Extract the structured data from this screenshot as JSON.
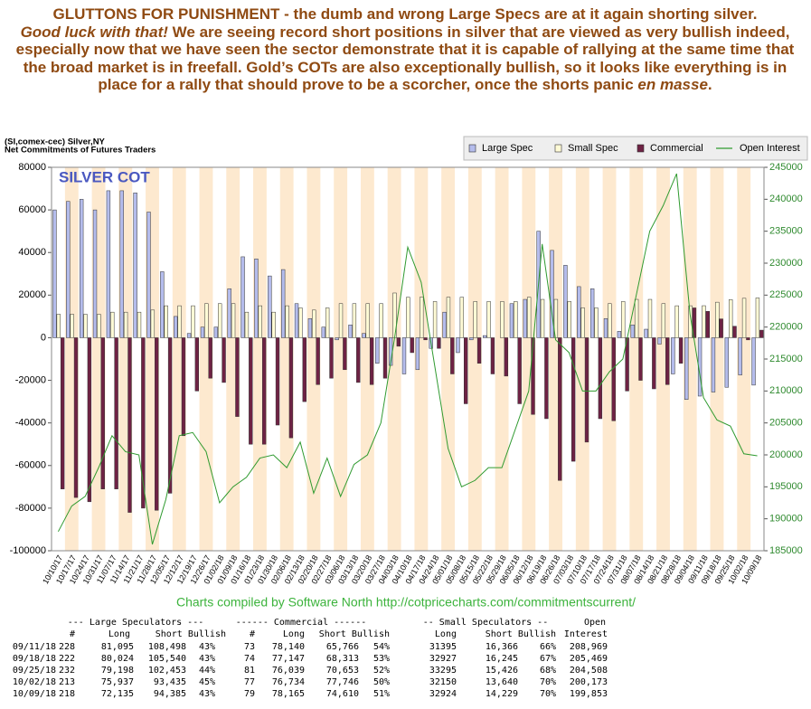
{
  "headline": {
    "parts": [
      "GLUTTONS FOR PUNISHMENT - the dumb and wrong Large Specs are at it again shorting silver.",
      "Good luck with that!",
      " We are seeing record short positions in silver that are viewed as very bullish indeed, especially now that we have seen the sector demonstrate that it is capable of rallying at the same time that the broad market is in freefall. Gold’s COTs are also exceptionally bullish, so it looks like everything is in place for a rally that should prove to be a scorcher, once the shorts panic ",
      "en masse",
      "."
    ]
  },
  "chart_data": {
    "type": "bar",
    "title": "SILVER COT",
    "subtitle": [
      "(SI,comex-cec) Silver,NY",
      "Net Commitments of Futures Traders"
    ],
    "categories": [
      "10/10/17",
      "10/17/17",
      "10/24/17",
      "10/31/17",
      "11/07/17",
      "11/14/17",
      "11/21/17",
      "11/28/17",
      "12/05/17",
      "12/12/17",
      "12/19/17",
      "12/26/17",
      "01/02/18",
      "01/09/18",
      "01/16/18",
      "01/23/18",
      "01/30/18",
      "02/06/18",
      "02/13/18",
      "02/20/18",
      "02/27/18",
      "03/06/18",
      "03/13/18",
      "03/20/18",
      "03/27/18",
      "04/03/18",
      "04/10/18",
      "04/17/18",
      "04/24/18",
      "05/01/18",
      "05/08/18",
      "05/15/18",
      "05/22/18",
      "05/29/18",
      "06/05/18",
      "06/12/18",
      "06/19/18",
      "06/26/18",
      "07/03/18",
      "07/10/18",
      "07/17/18",
      "07/24/18",
      "07/31/18",
      "08/07/18",
      "08/14/18",
      "08/21/18",
      "08/28/18",
      "09/04/18",
      "09/11/18",
      "09/18/18",
      "09/25/18",
      "10/02/18",
      "10/09/18"
    ],
    "series": [
      {
        "name": "Large Spec",
        "color": "#b4bcec",
        "values": [
          60000,
          64000,
          65000,
          60000,
          69000,
          69000,
          68000,
          59000,
          31000,
          10000,
          2000,
          5000,
          5000,
          23000,
          38000,
          37000,
          29000,
          32000,
          16000,
          9000,
          5000,
          -1000,
          6000,
          2000,
          -12000,
          -13000,
          -17000,
          -15000,
          -5000,
          12000,
          -7000,
          -1000,
          1000,
          0,
          16000,
          18000,
          50000,
          41000,
          34000,
          24000,
          23000,
          9000,
          3000,
          6000,
          4000,
          -3000,
          -17000,
          -29000,
          -27403,
          -25516,
          -23255,
          -17498,
          -22250
        ]
      },
      {
        "name": "Small Spec",
        "color": "#fffbd6",
        "values": [
          11000,
          11000,
          11000,
          11000,
          12000,
          12000,
          12000,
          13000,
          15000,
          15000,
          15000,
          16000,
          16000,
          16000,
          12000,
          15000,
          12000,
          15000,
          14000,
          13000,
          14000,
          16000,
          16000,
          16000,
          16000,
          21000,
          19000,
          19000,
          17000,
          19000,
          19000,
          17000,
          17000,
          17000,
          17000,
          19000,
          18000,
          18000,
          17000,
          14000,
          14000,
          16000,
          17000,
          18000,
          18000,
          16000,
          15000,
          15000,
          15029,
          16682,
          17869,
          18510,
          18695
        ]
      },
      {
        "name": "Commercial",
        "color": "#6e2244",
        "values": [
          -71000,
          -75000,
          -77000,
          -71000,
          -71000,
          -82000,
          -80000,
          -81000,
          -73000,
          -46000,
          -25000,
          -19000,
          -21000,
          -37000,
          -50000,
          -50000,
          -41000,
          -47000,
          -30000,
          -22000,
          -19000,
          -15000,
          -21000,
          -22000,
          -19000,
          -4000,
          -7000,
          -1000,
          -5000,
          -17000,
          -31000,
          -12000,
          -17000,
          -18000,
          -31000,
          -36000,
          -38000,
          -67000,
          -58000,
          -49000,
          -38000,
          -39000,
          -25000,
          -20000,
          -24000,
          -22000,
          -12000,
          14000,
          12374,
          8834,
          5386,
          -1012,
          3555
        ]
      },
      {
        "name": "Open Interest",
        "color": "#2f9a2f",
        "axis": "y2",
        "type": "line",
        "values": [
          188000,
          192000,
          193500,
          198000,
          203000,
          200500,
          200000,
          186000,
          193000,
          203000,
          203500,
          200500,
          192500,
          195000,
          196500,
          199500,
          200000,
          198000,
          202000,
          194000,
          199500,
          193500,
          198500,
          200000,
          205000,
          218000,
          232500,
          227000,
          214000,
          201000,
          195000,
          196000,
          198000,
          198000,
          204000,
          210000,
          233000,
          218000,
          216000,
          210000,
          210000,
          213000,
          215000,
          225000,
          235000,
          239000,
          244000,
          222000,
          208969,
          205469,
          204508,
          200173,
          199853
        ]
      }
    ],
    "ylim": [
      -100000,
      80000
    ],
    "yticks": [
      -100000,
      -80000,
      -60000,
      -40000,
      -20000,
      0,
      20000,
      40000,
      60000,
      80000
    ],
    "y2lim": [
      185000,
      245000
    ],
    "y2ticks": [
      185000,
      190000,
      195000,
      200000,
      205000,
      210000,
      215000,
      220000,
      225000,
      230000,
      235000,
      240000,
      245000
    ],
    "grid": false,
    "legend": "top-right"
  },
  "credit": "Charts compiled by Software North  http://cotpricecharts.com/commitmentscurrent/",
  "table": {
    "groups": [
      "--- Large Speculators ---",
      "------ Commercial ------",
      "-- Small Speculators --",
      "Open"
    ],
    "columns": [
      "#",
      "Long",
      "Short Bullish",
      "#",
      "Long",
      "Short Bullish",
      "Long",
      "Short Bullish",
      "Interest"
    ],
    "rows": [
      [
        "09/11/18",
        "228",
        "81,095",
        "108,498",
        "43%",
        "73",
        "78,140",
        "65,766",
        "54%",
        "31395",
        "16,366",
        "66%",
        "208,969"
      ],
      [
        "09/18/18",
        "222",
        "80,024",
        "105,540",
        "43%",
        "74",
        "77,147",
        "68,313",
        "53%",
        "32927",
        "16,245",
        "67%",
        "205,469"
      ],
      [
        "09/25/18",
        "232",
        "79,198",
        "102,453",
        "44%",
        "81",
        "76,039",
        "70,653",
        "52%",
        "33295",
        "15,426",
        "68%",
        "204,508"
      ],
      [
        "10/02/18",
        "213",
        "75,937",
        "93,435",
        "45%",
        "77",
        "76,734",
        "77,746",
        "50%",
        "32150",
        "13,640",
        "70%",
        "200,173"
      ],
      [
        "10/09/18",
        "218",
        "72,135",
        "94,385",
        "43%",
        "79",
        "78,165",
        "74,610",
        "51%",
        "32924",
        "14,229",
        "70%",
        "199,853"
      ]
    ]
  }
}
